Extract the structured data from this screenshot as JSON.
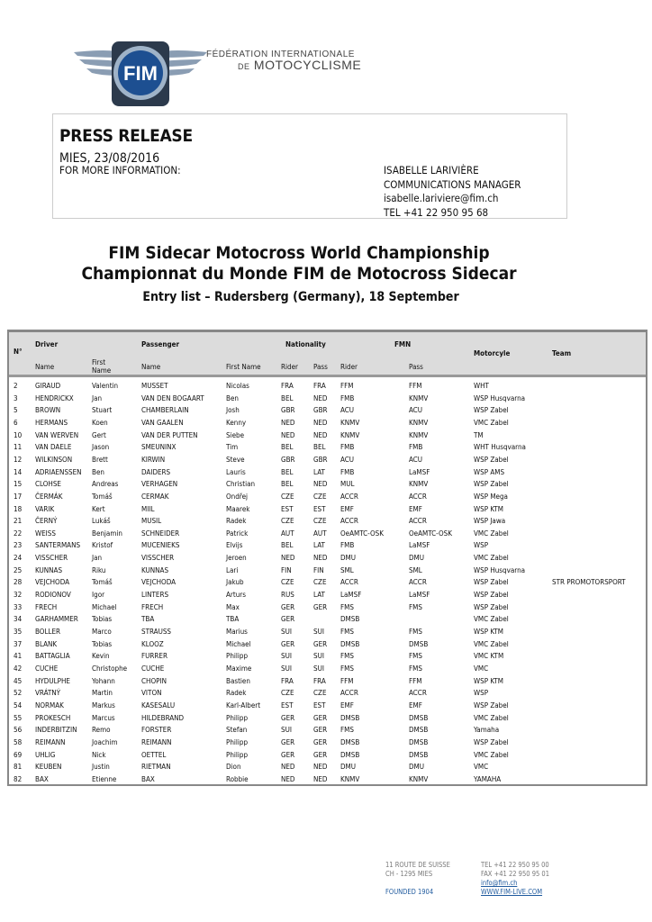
{
  "header": {
    "org_line1": "FÉDÉRATION INTERNATIONALE",
    "org_line2_prefix": "DE",
    "org_line2": "MOTOCYCLISME",
    "logo_text": "FIM"
  },
  "press": {
    "title": "PRESS RELEASE",
    "date": "MIES, 23/08/2016",
    "more_info": "FOR MORE INFORMATION:",
    "contact": [
      "ISABELLE LARIVIÈRE",
      "COMMUNICATIONS MANAGER",
      "isabelle.lariviere@fim.ch",
      "TEL +41 22 950 95 68"
    ]
  },
  "titles": {
    "en": "FIM Sidecar Motocross World Championship",
    "fr": "Championnat du Monde FIM de Motocross Sidecar",
    "sub": "Entry list – Rudersberg (Germany), 18 September"
  },
  "table": {
    "headers": {
      "no": "N°",
      "driver": "Driver",
      "passenger": "Passenger",
      "nationality": "Nationality",
      "fmn": "FMN",
      "motorcycle": "Motorcyle",
      "team": "Team",
      "name": "Name",
      "first_name_a": "First",
      "first_name_b": "Name",
      "first_name": "First Name",
      "rider": "Rider",
      "pass": "Pass"
    },
    "rows": [
      [
        "2",
        "GIRAUD",
        "Valentin",
        "MUSSET",
        "Nicolas",
        "FRA",
        "FRA",
        "FFM",
        "FFM",
        "WHT",
        ""
      ],
      [
        "3",
        "HENDRICKX",
        "Jan",
        "VAN DEN BOGAART",
        "Ben",
        "BEL",
        "NED",
        "FMB",
        "KNMV",
        "WSP Husqvarna",
        ""
      ],
      [
        "5",
        "BROWN",
        "Stuart",
        "CHAMBERLAIN",
        "Josh",
        "GBR",
        "GBR",
        "ACU",
        "ACU",
        "WSP Zabel",
        ""
      ],
      [
        "6",
        "HERMANS",
        "Koen",
        "VAN GAALEN",
        "Kenny",
        "NED",
        "NED",
        "KNMV",
        "KNMV",
        "VMC Zabel",
        ""
      ],
      [
        "10",
        "VAN WERVEN",
        "Gert",
        "VAN DER PUTTEN",
        "Siebe",
        "NED",
        "NED",
        "KNMV",
        "KNMV",
        "TM",
        ""
      ],
      [
        "11",
        "VAN DAELE",
        "Jason",
        "SMEUNINX",
        "Tim",
        "BEL",
        "BEL",
        "FMB",
        "FMB",
        "WHT Husqvarna",
        ""
      ],
      [
        "12",
        "WILKINSON",
        "Brett",
        "KIRWIN",
        "Steve",
        "GBR",
        "GBR",
        "ACU",
        "ACU",
        "WSP Zabel",
        ""
      ],
      [
        "14",
        "ADRIAENSSEN",
        "Ben",
        "DAIDERS",
        "Lauris",
        "BEL",
        "LAT",
        "FMB",
        "LaMSF",
        "WSP AMS",
        ""
      ],
      [
        "15",
        "CLOHSE",
        "Andreas",
        "VERHAGEN",
        "Christian",
        "BEL",
        "NED",
        "MUL",
        "KNMV",
        "WSP Zabel",
        ""
      ],
      [
        "17",
        "ČERMÁK",
        "Tomáš",
        "CERMAK",
        "Ondřej",
        "CZE",
        "CZE",
        "ACCR",
        "ACCR",
        "WSP Mega",
        ""
      ],
      [
        "18",
        "VARIK",
        "Kert",
        "MIIL",
        "Maarek",
        "EST",
        "EST",
        "EMF",
        "EMF",
        "WSP KTM",
        ""
      ],
      [
        "21",
        "ČERNÝ",
        "Lukáš",
        "MUSIL",
        "Radek",
        "CZE",
        "CZE",
        "ACCR",
        "ACCR",
        "WSP Jawa",
        ""
      ],
      [
        "22",
        "WEISS",
        "Benjamin",
        "SCHNEIDER",
        "Patrick",
        "AUT",
        "AUT",
        "OeAMTC-OSK",
        "OeAMTC-OSK",
        "VMC Zabel",
        ""
      ],
      [
        "23",
        "SANTERMANS",
        "Kristof",
        "MUCENIEKS",
        "Elvijs",
        "BEL",
        "LAT",
        "FMB",
        "LaMSF",
        "WSP",
        ""
      ],
      [
        "24",
        "VISSCHER",
        "Jan",
        "VISSCHER",
        "Jeroen",
        "NED",
        "NED",
        "DMU",
        "DMU",
        "VMC Zabel",
        ""
      ],
      [
        "25",
        "KUNNAS",
        "Riku",
        "KUNNAS",
        "Lari",
        "FIN",
        "FIN",
        "SML",
        "SML",
        "WSP Husqvarna",
        ""
      ],
      [
        "28",
        "VEJCHODA",
        "Tomáš",
        "VEJCHODA",
        "Jakub",
        "CZE",
        "CZE",
        "ACCR",
        "ACCR",
        "WSP Zabel",
        "STR PROMOTORSPORT"
      ],
      [
        "32",
        "RODIONOV",
        "Igor",
        "LINTERS",
        "Arturs",
        "RUS",
        "LAT",
        "LaMSF",
        "LaMSF",
        "WSP Zabel",
        ""
      ],
      [
        "33",
        "FRECH",
        "Michael",
        "FRECH",
        "Max",
        "GER",
        "GER",
        "FMS",
        "FMS",
        "WSP Zabel",
        ""
      ],
      [
        "34",
        "GARHAMMER",
        "Tobias",
        "TBA",
        "TBA",
        "GER",
        "",
        "DMSB",
        "",
        "VMC Zabel",
        ""
      ],
      [
        "35",
        "BOLLER",
        "Marco",
        "STRAUSS",
        "Marius",
        "SUI",
        "SUI",
        "FMS",
        "FMS",
        "WSP KTM",
        ""
      ],
      [
        "37",
        "BLANK",
        "Tobias",
        "KLOOZ",
        "Michael",
        "GER",
        "GER",
        "DMSB",
        "DMSB",
        "VMC Zabel",
        ""
      ],
      [
        "41",
        "BATTAGLIA",
        "Kevin",
        "FURRER",
        "Philipp",
        "SUI",
        "SUI",
        "FMS",
        "FMS",
        "VMC KTM",
        ""
      ],
      [
        "42",
        "CUCHE",
        "Christophe",
        "CUCHE",
        "Maxime",
        "SUI",
        "SUI",
        "FMS",
        "FMS",
        "VMC",
        ""
      ],
      [
        "45",
        "HYDULPHE",
        "Yohann",
        "CHOPIN",
        "Bastien",
        "FRA",
        "FRA",
        "FFM",
        "FFM",
        "WSP KTM",
        ""
      ],
      [
        "52",
        "VRÁTNÝ",
        "Martin",
        "VITON",
        "Radek",
        "CZE",
        "CZE",
        "ACCR",
        "ACCR",
        "WSP",
        ""
      ],
      [
        "54",
        "NORMAK",
        "Markus",
        "KASESALU",
        "Karl-Albert",
        "EST",
        "EST",
        "EMF",
        "EMF",
        "WSP Zabel",
        ""
      ],
      [
        "55",
        "PROKESCH",
        "Marcus",
        "HILDEBRAND",
        "Philipp",
        "GER",
        "GER",
        "DMSB",
        "DMSB",
        "VMC Zabel",
        ""
      ],
      [
        "56",
        "INDERBITZIN",
        "Remo",
        "FORSTER",
        "Stefan",
        "SUI",
        "GER",
        "FMS",
        "DMSB",
        "Yamaha",
        ""
      ],
      [
        "58",
        "REIMANN",
        "Joachim",
        "REIMANN",
        "Philipp",
        "GER",
        "GER",
        "DMSB",
        "DMSB",
        "WSP Zabel",
        ""
      ],
      [
        "69",
        "UHLIG",
        "Nick",
        "OETTEL",
        "Philipp",
        "GER",
        "GER",
        "DMSB",
        "DMSB",
        "VMC Zabel",
        ""
      ],
      [
        "81",
        "KEUBEN",
        "Justin",
        "RIETMAN",
        "Dion",
        "NED",
        "NED",
        "DMU",
        "DMU",
        "VMC",
        ""
      ],
      [
        "82",
        "BAX",
        "Etienne",
        "BAX",
        "Robbie",
        "NED",
        "NED",
        "KNMV",
        "KNMV",
        "YAMAHA",
        ""
      ]
    ]
  },
  "footer": {
    "address1": "11 ROUTE DE SUISSE",
    "address2": "CH - 1295 MIES",
    "founded": "FOUNDED 1904",
    "tel": "TEL +41 22 950 95 00",
    "fax": "FAX +41 22 950 95 01",
    "email": "info@fim.ch",
    "web": "WWW.FIM-LIVE.COM"
  }
}
